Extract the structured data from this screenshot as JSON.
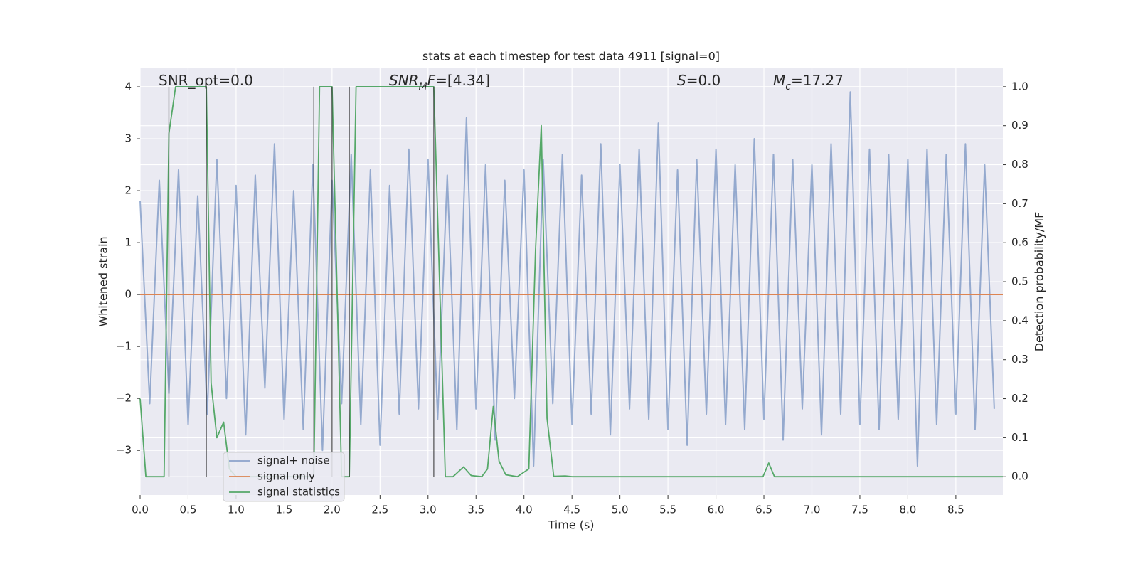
{
  "chart_data": {
    "type": "line",
    "title": "stats at each timestep for test data 4911 [signal=0]",
    "xlabel": "Time (s)",
    "ylabel": "Whitened strain",
    "y2label": "Detection probability/MF",
    "xlim": [
      0,
      8.99
    ],
    "ylim": [
      -3.86,
      4.37
    ],
    "y2lim": [
      -0.047,
      1.049
    ],
    "xticks": [
      {
        "value": 0,
        "label": "0.0"
      },
      {
        "value": 0.5,
        "label": "0.5"
      },
      {
        "value": 1,
        "label": "1.0"
      },
      {
        "value": 1.5,
        "label": "1.5"
      },
      {
        "value": 2,
        "label": "2.0"
      },
      {
        "value": 2.5,
        "label": "2.5"
      },
      {
        "value": 3,
        "label": "3.0"
      },
      {
        "value": 3.5,
        "label": "3.5"
      },
      {
        "value": 4,
        "label": "4.0"
      },
      {
        "value": 4.5,
        "label": "4.5"
      },
      {
        "value": 5,
        "label": "5.0"
      },
      {
        "value": 5.5,
        "label": "5.5"
      },
      {
        "value": 6,
        "label": "6.0"
      },
      {
        "value": 6.5,
        "label": "6.5"
      },
      {
        "value": 7,
        "label": "7.0"
      },
      {
        "value": 7.5,
        "label": "7.5"
      },
      {
        "value": 8,
        "label": "8.0"
      },
      {
        "value": 8.5,
        "label": "8.5"
      }
    ],
    "yticks": [
      {
        "value": -3,
        "label": "−3"
      },
      {
        "value": -2,
        "label": "−2"
      },
      {
        "value": -1,
        "label": "−1"
      },
      0,
      1,
      2,
      3,
      4
    ],
    "y2ticks": [
      {
        "value": 0,
        "label": "0.0"
      },
      {
        "value": 0.1,
        "label": "0.1"
      },
      {
        "value": 0.2,
        "label": "0.2"
      },
      {
        "value": 0.3,
        "label": "0.3"
      },
      {
        "value": 0.4,
        "label": "0.4"
      },
      {
        "value": 0.5,
        "label": "0.5"
      },
      {
        "value": 0.6,
        "label": "0.6"
      },
      {
        "value": 0.7,
        "label": "0.7"
      },
      {
        "value": 0.8,
        "label": "0.8"
      },
      {
        "value": 0.9,
        "label": "0.9"
      },
      {
        "value": 1,
        "label": "1.0"
      }
    ],
    "grid": true,
    "vlines": [
      0.3,
      0.69,
      1.81,
      2.0,
      2.18,
      3.06
    ],
    "annotations": [
      {
        "parts": [
          {
            "text": "SNR_opt=0.0",
            "style": "normal"
          }
        ]
      },
      {
        "parts": [
          {
            "text": "SNR",
            "style": "italic"
          },
          {
            "text": "M",
            "style": "sub"
          },
          {
            "text": "F",
            "style": "italic"
          },
          {
            "text": "=[4.34]",
            "style": "normal"
          }
        ]
      },
      {
        "parts": [
          {
            "text": "S",
            "style": "italic"
          },
          {
            "text": "=0.0",
            "style": "normal"
          }
        ]
      },
      {
        "parts": [
          {
            "text": "M",
            "style": "italic"
          },
          {
            "text": "c",
            "style": "sub"
          },
          {
            "text": "=17.27",
            "style": "normal"
          }
        ]
      }
    ],
    "series": [
      {
        "name": "signal+ noise",
        "color": "#4c72b0",
        "x": [
          0.0,
          0.1,
          0.2,
          0.3,
          0.4,
          0.5,
          0.6,
          0.7,
          0.8,
          0.9,
          1.0,
          1.1,
          1.2,
          1.3,
          1.4,
          1.5,
          1.6,
          1.7,
          1.8,
          1.9,
          2.0,
          2.1,
          2.2,
          2.3,
          2.4,
          2.5,
          2.6,
          2.7,
          2.8,
          2.9,
          3.0,
          3.1,
          3.2,
          3.3,
          3.4,
          3.5,
          3.6,
          3.7,
          3.8,
          3.9,
          4.0,
          4.1,
          4.2,
          4.3,
          4.4,
          4.5,
          4.6,
          4.7,
          4.8,
          4.9,
          5.0,
          5.1,
          5.2,
          5.3,
          5.4,
          5.5,
          5.6,
          5.7,
          5.8,
          5.9,
          6.0,
          6.1,
          6.2,
          6.3,
          6.4,
          6.5,
          6.6,
          6.7,
          6.8,
          6.9,
          7.0,
          7.1,
          7.2,
          7.3,
          7.4,
          7.5,
          7.6,
          7.7,
          7.8,
          7.9,
          8.0,
          8.1,
          8.2,
          8.3,
          8.4,
          8.5,
          8.6,
          8.7,
          8.8,
          8.9
        ],
        "values": [
          1.8,
          -2.1,
          2.2,
          -1.9,
          2.4,
          -2.5,
          1.9,
          -2.3,
          2.6,
          -2.0,
          2.1,
          -2.7,
          2.3,
          -1.8,
          2.9,
          -2.4,
          2.0,
          -2.6,
          2.5,
          -3.0,
          2.2,
          -2.1,
          2.7,
          -2.5,
          2.4,
          -2.9,
          2.1,
          -2.3,
          2.8,
          -2.2,
          2.6,
          -2.4,
          2.3,
          -2.6,
          3.4,
          -2.2,
          2.5,
          -2.8,
          2.2,
          -2.0,
          2.4,
          -3.3,
          2.6,
          -2.1,
          2.7,
          -2.5,
          2.3,
          -2.3,
          2.9,
          -2.7,
          2.5,
          -2.2,
          2.8,
          -2.4,
          3.3,
          -2.6,
          2.4,
          -2.9,
          2.6,
          -2.3,
          2.8,
          -2.5,
          2.5,
          -2.6,
          3.0,
          -2.4,
          2.7,
          -2.8,
          2.6,
          -2.2,
          2.5,
          -2.7,
          2.9,
          -2.3,
          3.9,
          -2.5,
          2.8,
          -2.6,
          2.7,
          -2.4,
          2.6,
          -3.3,
          2.8,
          -2.5,
          2.7,
          -2.3,
          2.9,
          -2.6,
          2.5,
          -2.2
        ]
      },
      {
        "name": "signal only",
        "color": "#dd8452",
        "x": [
          0,
          8.99
        ],
        "values": [
          0,
          0
        ]
      },
      {
        "name": "signal statistics",
        "color": "#55a868",
        "axis": "y2",
        "x": [
          0.0,
          0.06,
          0.25,
          0.3,
          0.37,
          0.69,
          0.74,
          0.8,
          0.87,
          0.93,
          1.0,
          1.81,
          1.87,
          2.0,
          2.1,
          2.18,
          2.25,
          3.06,
          3.18,
          3.26,
          3.37,
          3.45,
          3.56,
          3.62,
          3.68,
          3.74,
          3.81,
          3.93,
          4.05,
          4.12,
          4.18,
          4.24,
          4.31,
          4.43,
          4.5,
          6.49,
          6.55,
          6.61,
          8.99
        ],
        "values": [
          0.2,
          0.0,
          0.0,
          0.88,
          1.0,
          1.0,
          0.24,
          0.1,
          0.14,
          0.02,
          0.0,
          0.0,
          1.0,
          1.0,
          0.0,
          0.0,
          1.0,
          1.0,
          0.0,
          0.0,
          0.025,
          0.003,
          0.0,
          0.02,
          0.18,
          0.04,
          0.005,
          0.0,
          0.02,
          0.58,
          0.9,
          0.15,
          0.001,
          0.002,
          0.0,
          0.0,
          0.035,
          0.0,
          0.0
        ]
      }
    ]
  }
}
